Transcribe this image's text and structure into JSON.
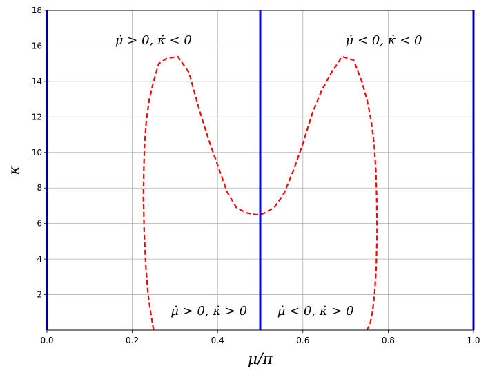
{
  "chart_data": {
    "type": "line",
    "title": "",
    "xlabel": "μ/π",
    "ylabel": "κ",
    "xlim": [
      0,
      1
    ],
    "ylim": [
      0,
      18
    ],
    "grid": true,
    "x_ticks": [
      0.0,
      0.2,
      0.4,
      0.6,
      0.8,
      1.0
    ],
    "x_tick_labels": [
      "0.0",
      "0.2",
      "0.4",
      "0.6",
      "0.8",
      "1.0"
    ],
    "y_ticks": [
      2,
      4,
      6,
      8,
      10,
      12,
      14,
      16,
      18
    ],
    "y_tick_labels": [
      "2",
      "4",
      "6",
      "8",
      "10",
      "12",
      "14",
      "16",
      "18"
    ],
    "series": [
      {
        "style": "dashed",
        "color": "#ff0000",
        "x": [
          0.25,
          0.243,
          0.237,
          0.232,
          0.228,
          0.226,
          0.227,
          0.229,
          0.233,
          0.24,
          0.25,
          0.262,
          0.281,
          0.307,
          0.333,
          0.356,
          0.378,
          0.4,
          0.422,
          0.444,
          0.467,
          0.489,
          0.5,
          0.511,
          0.533,
          0.556,
          0.578,
          0.6,
          0.622,
          0.644,
          0.667,
          0.692,
          0.719,
          0.738,
          0.75,
          0.76,
          0.767,
          0.771,
          0.773,
          0.774,
          0.772,
          0.768,
          0.763,
          0.757,
          0.75
        ],
        "y": [
          0,
          1.0,
          2.0,
          3.5,
          5.5,
          7.5,
          9.0,
          10.5,
          11.8,
          13.0,
          14.0,
          15.0,
          15.3,
          15.4,
          14.5,
          12.5,
          10.8,
          9.3,
          7.8,
          6.9,
          6.6,
          6.5,
          6.5,
          6.6,
          6.9,
          7.7,
          9.0,
          10.5,
          12.2,
          13.5,
          14.5,
          15.4,
          15.2,
          14.0,
          13.0,
          11.8,
          10.5,
          9.0,
          7.5,
          5.5,
          3.5,
          2.0,
          1.0,
          0.3,
          0
        ]
      },
      {
        "style": "solid",
        "color": "#0000ff",
        "x": [
          0.5,
          0.5
        ],
        "y": [
          0,
          18
        ]
      },
      {
        "style": "solid",
        "color": "#0000ff",
        "x": [
          0.0,
          0.0
        ],
        "y": [
          0,
          18
        ]
      },
      {
        "style": "solid",
        "color": "#0000ff",
        "x": [
          1.0,
          1.0
        ],
        "y": [
          0,
          18
        ]
      }
    ],
    "annotations": [
      {
        "text": "μ̇ > 0, κ̇ < 0",
        "x": 0.16,
        "y": 16.1
      },
      {
        "text": "μ̇ < 0, κ̇ < 0",
        "x": 0.7,
        "y": 16.1
      },
      {
        "text": "μ̇ > 0, κ̇ > 0",
        "x": 0.29,
        "y": 0.85
      },
      {
        "text": "μ̇ < 0, κ̇ > 0",
        "x": 0.54,
        "y": 0.85
      }
    ]
  }
}
